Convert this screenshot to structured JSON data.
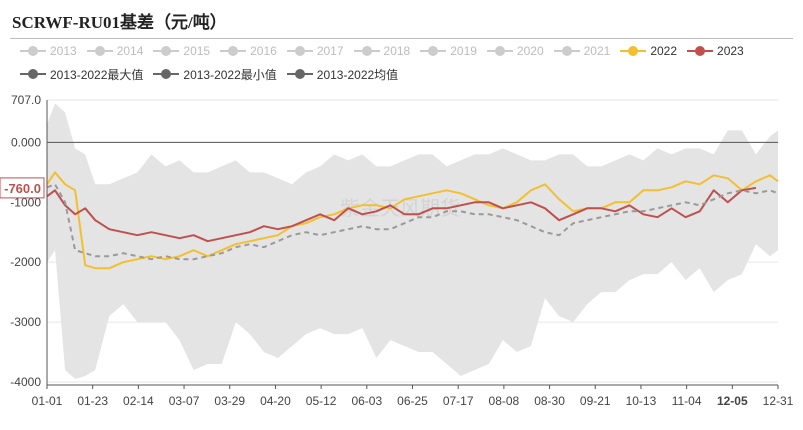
{
  "title": "SCRWF-RU01基差（元/吨）",
  "legend": {
    "row1": [
      {
        "label": "2013",
        "color": "#cccccc",
        "muted": true
      },
      {
        "label": "2014",
        "color": "#cccccc",
        "muted": true
      },
      {
        "label": "2015",
        "color": "#cccccc",
        "muted": true
      },
      {
        "label": "2016",
        "color": "#cccccc",
        "muted": true
      },
      {
        "label": "2017",
        "color": "#cccccc",
        "muted": true
      },
      {
        "label": "2018",
        "color": "#cccccc",
        "muted": true
      },
      {
        "label": "2019",
        "color": "#cccccc",
        "muted": true
      },
      {
        "label": "2020",
        "color": "#cccccc",
        "muted": true
      },
      {
        "label": "2021",
        "color": "#cccccc",
        "muted": true
      },
      {
        "label": "2022",
        "color": "#f2c02e",
        "muted": false
      },
      {
        "label": "2023",
        "color": "#c0504d",
        "muted": false
      }
    ],
    "row2": [
      {
        "label": "2013-2022最大值",
        "color": "#666666"
      },
      {
        "label": "2013-2022最小值",
        "color": "#666666"
      },
      {
        "label": "2013-2022均值",
        "color": "#666666"
      }
    ]
  },
  "watermark": "紫金天风期货",
  "chart_data": {
    "type": "line",
    "x_ticks": [
      "01-01",
      "01-23",
      "02-14",
      "03-07",
      "03-29",
      "04-20",
      "05-12",
      "06-03",
      "06-25",
      "07-17",
      "08-08",
      "08-30",
      "09-21",
      "10-13",
      "11-04",
      "12-05",
      "12-31"
    ],
    "highlight_x": "12-05",
    "y_ticks": [
      707.0,
      0.0,
      -1000,
      -2000,
      -3000,
      -4000
    ],
    "y_tick_labels": [
      "707.0",
      "0.000",
      "-1000",
      "-2000",
      "-3000",
      "-4000"
    ],
    "ylim": [
      -4050,
      707
    ],
    "last_value_label": "-760.0",
    "last_value": -760,
    "x": [
      "01-01",
      "01-05",
      "01-10",
      "01-15",
      "01-20",
      "01-25",
      "02-01",
      "02-08",
      "02-15",
      "02-22",
      "03-01",
      "03-08",
      "03-15",
      "03-22",
      "03-29",
      "04-05",
      "04-12",
      "04-19",
      "04-26",
      "05-03",
      "05-10",
      "05-17",
      "05-24",
      "05-31",
      "06-07",
      "06-14",
      "06-21",
      "06-28",
      "07-05",
      "07-12",
      "07-19",
      "07-26",
      "08-02",
      "08-09",
      "08-16",
      "08-23",
      "08-30",
      "09-06",
      "09-13",
      "09-20",
      "09-27",
      "10-04",
      "10-11",
      "10-18",
      "10-25",
      "11-01",
      "11-08",
      "11-15",
      "11-22",
      "11-29",
      "12-06",
      "12-13",
      "12-20",
      "12-27",
      "12-31"
    ],
    "band_max": [
      300,
      650,
      500,
      -100,
      -200,
      -700,
      -700,
      -600,
      -500,
      -200,
      -400,
      -300,
      -500,
      -500,
      -400,
      -300,
      -500,
      -500,
      -600,
      -700,
      -500,
      -400,
      -200,
      -300,
      -200,
      -400,
      -400,
      -300,
      -200,
      -200,
      -400,
      -300,
      -200,
      -200,
      -100,
      -200,
      -300,
      -300,
      -200,
      -200,
      -400,
      -400,
      -300,
      -200,
      -300,
      -100,
      -200,
      -100,
      -100,
      -200,
      200,
      200,
      -200,
      100,
      200
    ],
    "band_min": [
      -2000,
      -1800,
      -3800,
      -3950,
      -3900,
      -3800,
      -2900,
      -2700,
      -3000,
      -3000,
      -3000,
      -3300,
      -3800,
      -3700,
      -3700,
      -3000,
      -3200,
      -3500,
      -3600,
      -3400,
      -3200,
      -3100,
      -3200,
      -3200,
      -3100,
      -3600,
      -3300,
      -3400,
      -3500,
      -3500,
      -3700,
      -3900,
      -3800,
      -3700,
      -3300,
      -3500,
      -3400,
      -2600,
      -2900,
      -3000,
      -2700,
      -2500,
      -2500,
      -2300,
      -2200,
      -2200,
      -2000,
      -2300,
      -2100,
      -2500,
      -2300,
      -2200,
      -1700,
      -1900,
      -1800
    ],
    "series": [
      {
        "name": "2022",
        "color": "#f2c02e",
        "values": [
          -700,
          -500,
          -700,
          -800,
          -2050,
          -2100,
          -2100,
          -2000,
          -1950,
          -1900,
          -1950,
          -1900,
          -1800,
          -1900,
          -1800,
          -1700,
          -1650,
          -1600,
          -1550,
          -1400,
          -1350,
          -1250,
          -1200,
          -1100,
          -1050,
          -1050,
          -1100,
          -950,
          -900,
          -850,
          -800,
          -850,
          -950,
          -1050,
          -1100,
          -1000,
          -800,
          -700,
          -950,
          -1150,
          -1100,
          -1100,
          -1000,
          -1000,
          -800,
          -800,
          -750,
          -650,
          -700,
          -550,
          -600,
          -800,
          -650,
          -550,
          -650
        ]
      },
      {
        "name": "2023",
        "color": "#c0504d",
        "values": [
          -900,
          -800,
          -1050,
          -1200,
          -1100,
          -1300,
          -1450,
          -1500,
          -1550,
          -1500,
          -1550,
          -1600,
          -1550,
          -1650,
          -1600,
          -1550,
          -1500,
          -1400,
          -1450,
          -1400,
          -1300,
          -1200,
          -1300,
          -1100,
          -1200,
          -1150,
          -1050,
          -1200,
          -1200,
          -1100,
          -1100,
          -1050,
          -1000,
          -1000,
          -1100,
          -1050,
          -1000,
          -1100,
          -1300,
          -1200,
          -1100,
          -1100,
          -1150,
          -1050,
          -1200,
          -1250,
          -1100,
          -1250,
          -1150,
          -800,
          -1000,
          -800,
          -760,
          null,
          null
        ]
      },
      {
        "name": "2013-2022均值",
        "color": "#999999",
        "dashed": true,
        "values": [
          -750,
          -700,
          -1000,
          -1800,
          -1850,
          -1900,
          -1900,
          -1850,
          -1900,
          -1950,
          -1900,
          -1950,
          -1950,
          -1900,
          -1850,
          -1750,
          -1700,
          -1750,
          -1650,
          -1550,
          -1500,
          -1550,
          -1500,
          -1450,
          -1400,
          -1450,
          -1450,
          -1350,
          -1250,
          -1250,
          -1150,
          -1150,
          -1200,
          -1200,
          -1250,
          -1300,
          -1400,
          -1500,
          -1550,
          -1350,
          -1300,
          -1250,
          -1200,
          -1150,
          -1150,
          -1100,
          -1050,
          -1000,
          -1050,
          -950,
          -850,
          -800,
          -850,
          -800,
          -850
        ]
      }
    ],
    "grid": true
  }
}
